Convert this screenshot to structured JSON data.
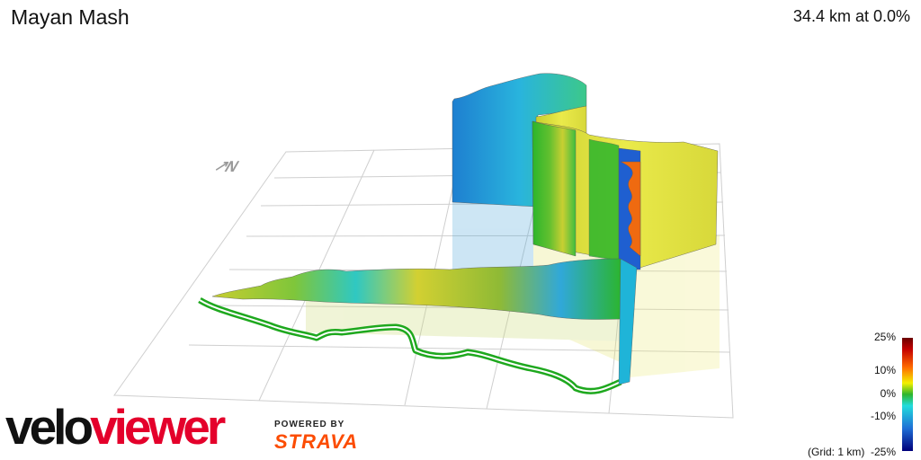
{
  "header": {
    "title": "Mayan Mash",
    "distance_summary": "34.4 km at 0.0%"
  },
  "compass": {
    "label": "↗N"
  },
  "legend": {
    "labels": [
      "25%",
      "10%",
      "0%",
      "-10%"
    ],
    "bottom_label": "-25%",
    "grid_note": "(Grid: 1 km)"
  },
  "branding": {
    "logo_part1": "velo",
    "logo_part2": "viewer",
    "powered_by": "POWERED BY",
    "strava": "STRAVA"
  },
  "colors": {
    "legend_max": "#6a0000",
    "legend_zero": "#2db52d",
    "legend_min": "#00007a",
    "strava_orange": "#fc4c02",
    "veloviewer_red": "#e4002b"
  }
}
